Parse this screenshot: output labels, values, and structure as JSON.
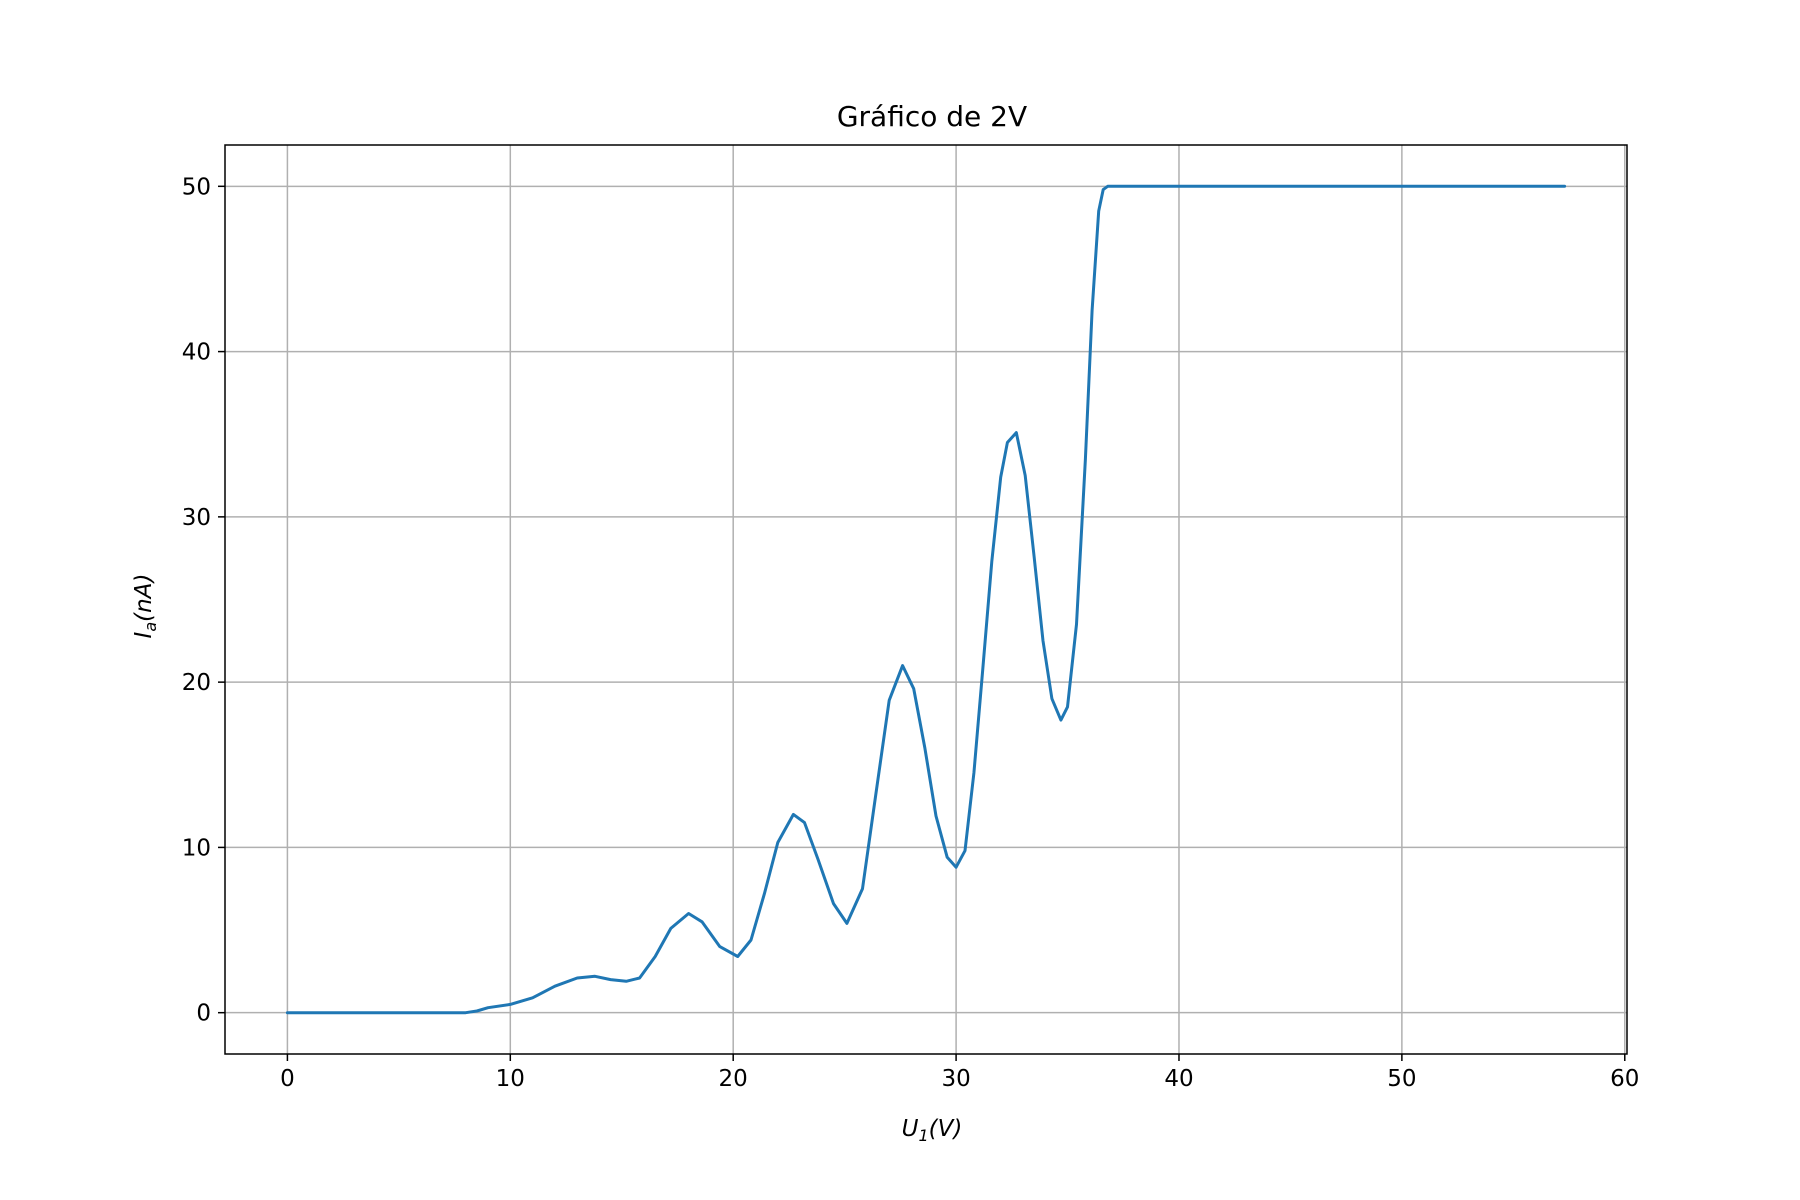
{
  "chart_data": {
    "type": "line",
    "title": "Gráfico de 2V",
    "xlabel": {
      "var": "U",
      "sub": "1",
      "unit": "(V)"
    },
    "ylabel": {
      "var": "I",
      "sub": "a",
      "unit": "(nA)"
    },
    "xlim": [
      -2.8,
      60.1
    ],
    "ylim": [
      -2.5,
      52.5
    ],
    "xticks": [
      0,
      10,
      20,
      30,
      40,
      50,
      60
    ],
    "yticks": [
      0,
      10,
      20,
      30,
      40,
      50
    ],
    "grid": true,
    "line_color": "#1f77b4",
    "series": [
      {
        "x": [
          0,
          2,
          4,
          6,
          8,
          8.5,
          9,
          10,
          11,
          12,
          13,
          13.8,
          14.5,
          15.2,
          15.8,
          16.5,
          17.2,
          18.0,
          18.6,
          19.4,
          20.2,
          20.8,
          21.4,
          22.0,
          22.7,
          23.2,
          23.8,
          24.5,
          25.1,
          25.8,
          26.4,
          27.0,
          27.6,
          28.1,
          28.6,
          29.1,
          29.6,
          30.0,
          30.4,
          30.8,
          31.2,
          31.6,
          32.0,
          32.3,
          32.7,
          33.1,
          33.5,
          33.9,
          34.3,
          34.7,
          35.0,
          35.4,
          35.8,
          36.1,
          36.4,
          36.6,
          36.8,
          37.2,
          40,
          45,
          50,
          55,
          57.3
        ],
        "y": [
          0,
          0,
          0,
          0,
          0,
          0.1,
          0.3,
          0.5,
          0.9,
          1.6,
          2.1,
          2.2,
          2.0,
          1.9,
          2.1,
          3.4,
          5.1,
          6.0,
          5.5,
          4.0,
          3.4,
          4.4,
          7.2,
          10.3,
          12.0,
          11.5,
          9.3,
          6.6,
          5.4,
          7.5,
          13.2,
          18.9,
          21.0,
          19.6,
          16.0,
          11.9,
          9.4,
          8.8,
          9.8,
          14.5,
          20.8,
          27.3,
          32.4,
          34.5,
          35.1,
          32.5,
          27.6,
          22.5,
          19.0,
          17.7,
          18.5,
          23.5,
          33.5,
          42.5,
          48.5,
          49.8,
          50,
          50,
          50,
          50,
          50,
          50,
          50
        ]
      }
    ]
  }
}
